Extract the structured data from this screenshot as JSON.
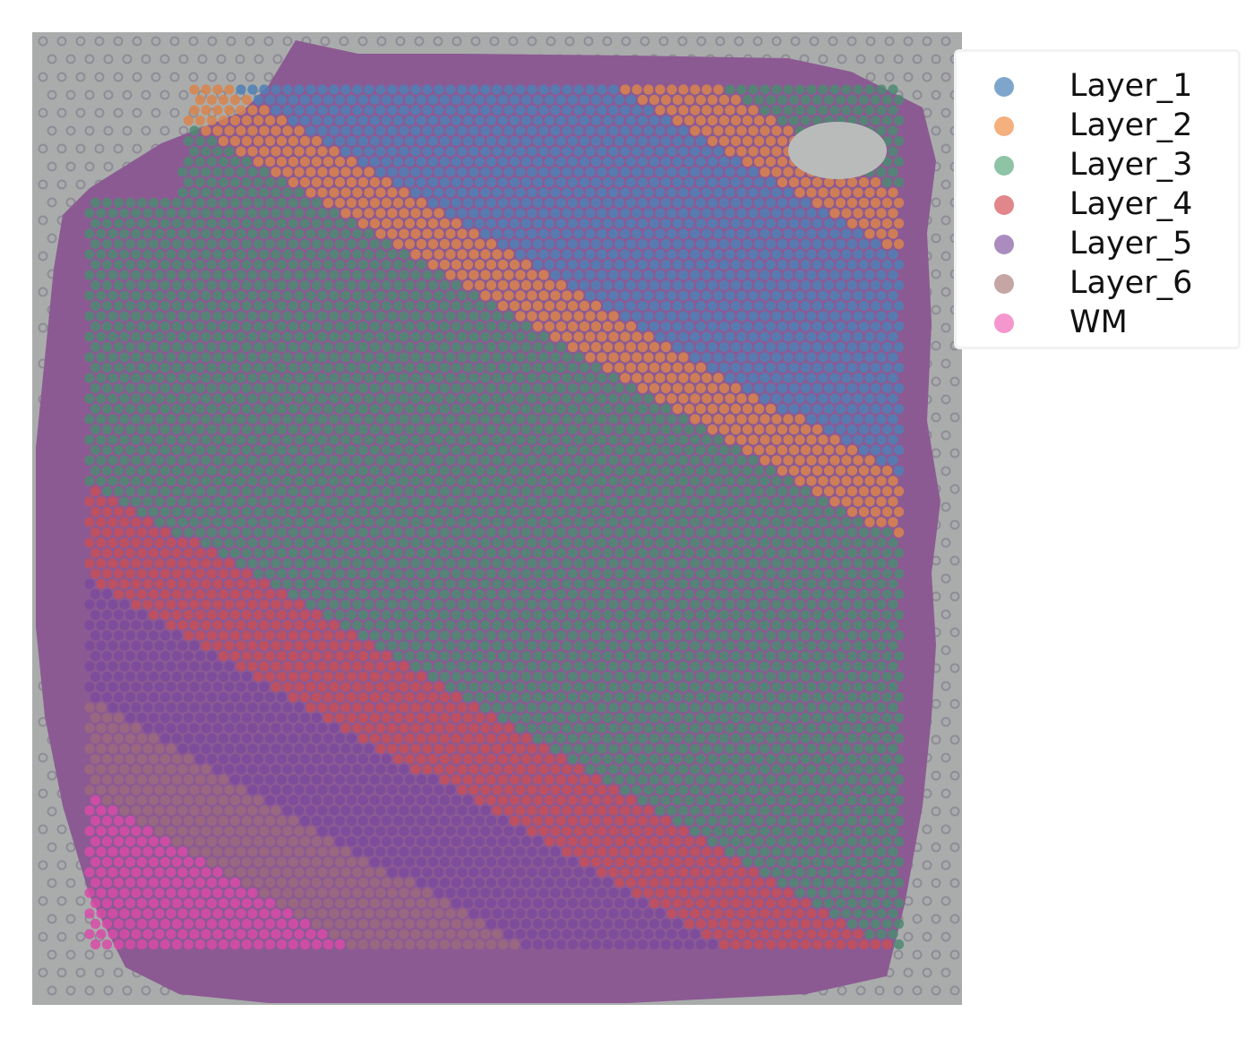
{
  "figure": {
    "background_color": "#a9acab",
    "tissue_color": "#8c5a93",
    "fiducial_dot_color": "#8f8c97"
  },
  "legend": {
    "items": [
      {
        "label": "Layer_1",
        "color": "#7ea6cd"
      },
      {
        "label": "Layer_2",
        "color": "#f4b07d"
      },
      {
        "label": "Layer_3",
        "color": "#8ec3a6"
      },
      {
        "label": "Layer_4",
        "color": "#e1868a"
      },
      {
        "label": "Layer_5",
        "color": "#aa8cbf"
      },
      {
        "label": "Layer_6",
        "color": "#c6a6a4"
      },
      {
        "label": "WM",
        "color": "#f597cd"
      }
    ]
  },
  "spot_colors": {
    "Layer_1": "#4f80b5",
    "Layer_2": "#d9844c",
    "Layer_3": "#4e8a72",
    "Layer_4": "#c54f58",
    "Layer_5": "#7a4a9c",
    "Layer_6": "#9c6a7e",
    "WM": "#d84ba8"
  }
}
